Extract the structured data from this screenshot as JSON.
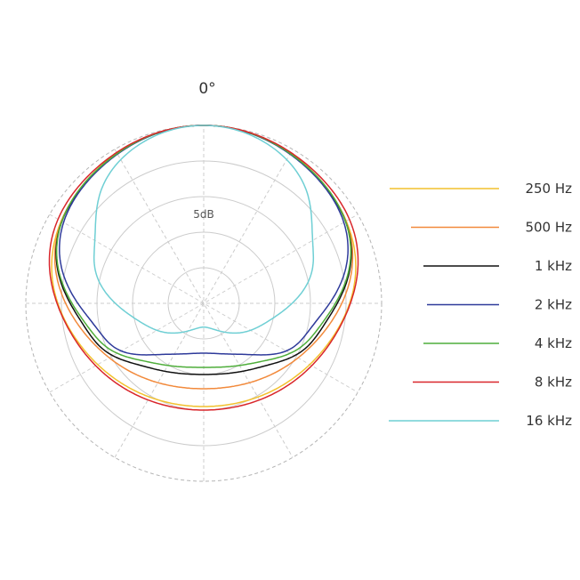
{
  "chart_data": {
    "type": "polar",
    "angle_label": "0°",
    "ring_label": "5dB",
    "rings": 5,
    "spokes_every_deg": 30,
    "grid": true,
    "legend_position": "right",
    "series": [
      {
        "name": "250 Hz",
        "color": "#f2c12e",
        "rear_lobe_dB": 11.5
      },
      {
        "name": "500 Hz",
        "color": "#f28a3c",
        "rear_lobe_dB": 6.5
      },
      {
        "name": "1 kHz",
        "color": "#111111",
        "rear_lobe_dB": 3.5
      },
      {
        "name": "2 kHz",
        "color": "#2e3a9a",
        "rear_lobe_dB": 5.0
      },
      {
        "name": "4 kHz",
        "color": "#4fae3b",
        "rear_lobe_dB": 3.0
      },
      {
        "name": "8 kHz",
        "color": "#d9262b",
        "rear_lobe_dB": 9.0
      },
      {
        "name": "16 kHz",
        "color": "#6fcfd4",
        "rear_lobe_dB": 0.0
      }
    ]
  }
}
